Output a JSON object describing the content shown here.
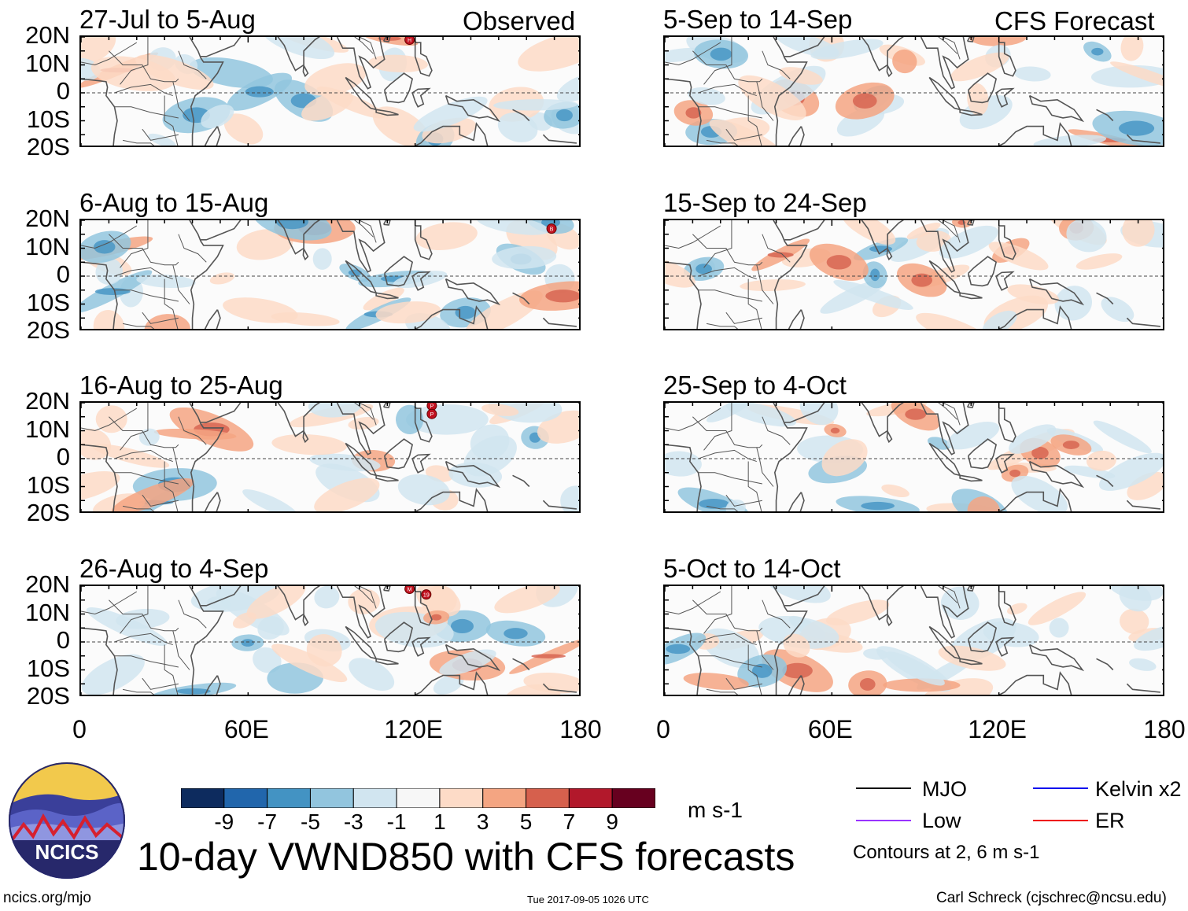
{
  "chart_data": {
    "type": "heatmap",
    "title": "10-day VWND850 with CFS forecasts",
    "variable": "VWND850",
    "units": "m s-1",
    "observed_label": "Observed",
    "forecast_label": "CFS Forecast",
    "x_ticks": [
      "0",
      "60E",
      "120E",
      "180"
    ],
    "y_ticks": [
      "20N",
      "10N",
      "0",
      "10S",
      "20S"
    ],
    "xlim": [
      0,
      180
    ],
    "ylim": [
      -20,
      20
    ],
    "panels": [
      {
        "period": "27-Jul to 5-Aug",
        "kind": "observed",
        "storms": [
          {
            "lon": 118,
            "lat": 19,
            "label": "H"
          }
        ]
      },
      {
        "period": "6-Aug to 15-Aug",
        "kind": "observed",
        "storms": [
          {
            "lon": 169,
            "lat": 17,
            "label": "B"
          }
        ]
      },
      {
        "period": "16-Aug to 25-Aug",
        "kind": "observed",
        "storms": [
          {
            "lon": 126,
            "lat": 19,
            "label": "P"
          },
          {
            "lon": 126,
            "lat": 16,
            "label": "P"
          }
        ]
      },
      {
        "period": "26-Aug to 4-Sep",
        "kind": "observed",
        "storms": [
          {
            "lon": 118,
            "lat": 19,
            "label": "M"
          },
          {
            "lon": 124,
            "lat": 17,
            "label": "19"
          }
        ]
      },
      {
        "period": "5-Sep to 14-Sep",
        "kind": "forecast",
        "storms": []
      },
      {
        "period": "15-Sep to 24-Sep",
        "kind": "forecast",
        "storms": []
      },
      {
        "period": "25-Sep to 4-Oct",
        "kind": "forecast",
        "storms": []
      },
      {
        "period": "5-Oct to 14-Oct",
        "kind": "forecast",
        "storms": []
      }
    ],
    "colorbar": {
      "ticks": [
        "-9",
        "-7",
        "-5",
        "-3",
        "-1",
        "1",
        "3",
        "5",
        "7",
        "9"
      ],
      "colors": [
        "#0d2b5e",
        "#2166ac",
        "#4393c3",
        "#92c5de",
        "#d1e5f0",
        "#f7f7f7",
        "#fddbc7",
        "#f4a582",
        "#d6604d",
        "#b2182b",
        "#67001f"
      ]
    },
    "legend": [
      {
        "label": "MJO",
        "color": "#000000"
      },
      {
        "label": "Kelvin x2",
        "color": "#0000ee"
      },
      {
        "label": "Low",
        "color": "#9933ff"
      },
      {
        "label": "ER",
        "color": "#ee0000"
      }
    ],
    "contour_note": "Contours at 2, 6 m s-1"
  },
  "branding": {
    "logo_text": "NCICS",
    "website": "ncics.org/mjo",
    "timestamp": "Tue 2017-09-05 1026 UTC",
    "author": "Carl Schreck (cjschrec@ncsu.edu)"
  }
}
